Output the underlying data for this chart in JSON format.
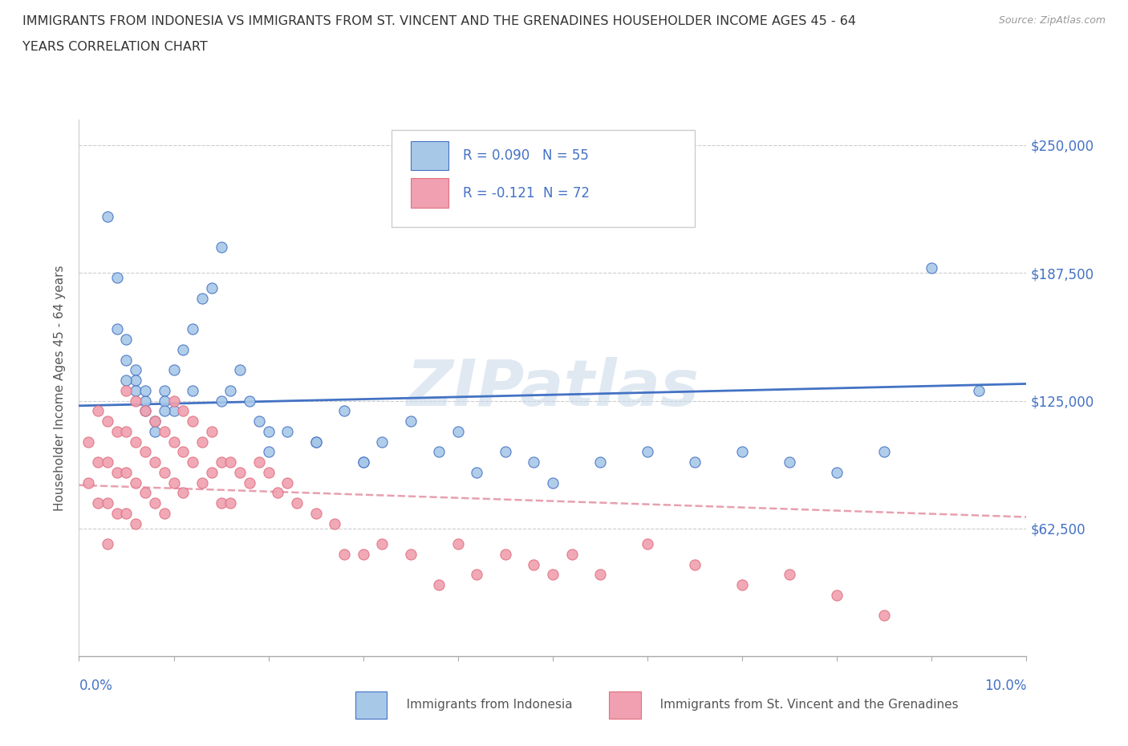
{
  "title_line1": "IMMIGRANTS FROM INDONESIA VS IMMIGRANTS FROM ST. VINCENT AND THE GRENADINES HOUSEHOLDER INCOME AGES 45 - 64",
  "title_line2": "YEARS CORRELATION CHART",
  "source_text": "Source: ZipAtlas.com",
  "ylabel": "Householder Income Ages 45 - 64 years",
  "xlim": [
    0.0,
    0.1
  ],
  "ylim": [
    0,
    262500
  ],
  "yticks": [
    0,
    62500,
    125000,
    187500,
    250000
  ],
  "ytick_labels": [
    "",
    "$62,500",
    "$125,000",
    "$187,500",
    "$250,000"
  ],
  "watermark": "ZIPatlas",
  "legend_r1": "R = 0.090   N = 55",
  "legend_r2": "R = -0.121  N = 72",
  "legend_label1": "Immigrants from Indonesia",
  "legend_label2": "Immigrants from St. Vincent and the Grenadines",
  "color_blue": "#A8C8E8",
  "color_pink": "#F0A0B0",
  "color_blue_dark": "#4472C4",
  "color_pink_dark": "#E07080",
  "color_pink_dashed": "#E8A0B0",
  "R1": 0.09,
  "N1": 55,
  "R2": -0.121,
  "N2": 72,
  "indonesia_x": [
    0.003,
    0.004,
    0.004,
    0.005,
    0.005,
    0.006,
    0.006,
    0.006,
    0.007,
    0.007,
    0.008,
    0.008,
    0.009,
    0.009,
    0.01,
    0.01,
    0.011,
    0.012,
    0.013,
    0.014,
    0.015,
    0.016,
    0.017,
    0.018,
    0.019,
    0.02,
    0.022,
    0.025,
    0.028,
    0.03,
    0.032,
    0.035,
    0.038,
    0.04,
    0.042,
    0.045,
    0.048,
    0.05,
    0.055,
    0.06,
    0.065,
    0.07,
    0.075,
    0.08,
    0.085,
    0.09,
    0.005,
    0.007,
    0.009,
    0.012,
    0.015,
    0.02,
    0.025,
    0.03,
    0.095
  ],
  "indonesia_y": [
    215000,
    185000,
    160000,
    155000,
    145000,
    140000,
    135000,
    130000,
    125000,
    120000,
    115000,
    110000,
    130000,
    125000,
    140000,
    120000,
    150000,
    160000,
    175000,
    180000,
    200000,
    130000,
    140000,
    125000,
    115000,
    100000,
    110000,
    105000,
    120000,
    95000,
    105000,
    115000,
    100000,
    110000,
    90000,
    100000,
    95000,
    85000,
    95000,
    100000,
    95000,
    100000,
    95000,
    90000,
    100000,
    190000,
    135000,
    130000,
    120000,
    130000,
    125000,
    110000,
    105000,
    95000,
    130000
  ],
  "stvincent_x": [
    0.001,
    0.001,
    0.002,
    0.002,
    0.002,
    0.003,
    0.003,
    0.003,
    0.003,
    0.004,
    0.004,
    0.004,
    0.005,
    0.005,
    0.005,
    0.005,
    0.006,
    0.006,
    0.006,
    0.006,
    0.007,
    0.007,
    0.007,
    0.008,
    0.008,
    0.008,
    0.009,
    0.009,
    0.009,
    0.01,
    0.01,
    0.01,
    0.011,
    0.011,
    0.011,
    0.012,
    0.012,
    0.013,
    0.013,
    0.014,
    0.014,
    0.015,
    0.015,
    0.016,
    0.016,
    0.017,
    0.018,
    0.019,
    0.02,
    0.021,
    0.022,
    0.023,
    0.025,
    0.027,
    0.028,
    0.03,
    0.032,
    0.035,
    0.038,
    0.04,
    0.042,
    0.045,
    0.048,
    0.05,
    0.052,
    0.055,
    0.06,
    0.065,
    0.07,
    0.075,
    0.08,
    0.085
  ],
  "stvincent_y": [
    105000,
    85000,
    120000,
    95000,
    75000,
    115000,
    95000,
    75000,
    55000,
    110000,
    90000,
    70000,
    130000,
    110000,
    90000,
    70000,
    125000,
    105000,
    85000,
    65000,
    120000,
    100000,
    80000,
    115000,
    95000,
    75000,
    110000,
    90000,
    70000,
    125000,
    105000,
    85000,
    120000,
    100000,
    80000,
    115000,
    95000,
    105000,
    85000,
    110000,
    90000,
    95000,
    75000,
    95000,
    75000,
    90000,
    85000,
    95000,
    90000,
    80000,
    85000,
    75000,
    70000,
    65000,
    50000,
    50000,
    55000,
    50000,
    35000,
    55000,
    40000,
    50000,
    45000,
    40000,
    50000,
    40000,
    55000,
    45000,
    35000,
    40000,
    30000,
    20000
  ]
}
